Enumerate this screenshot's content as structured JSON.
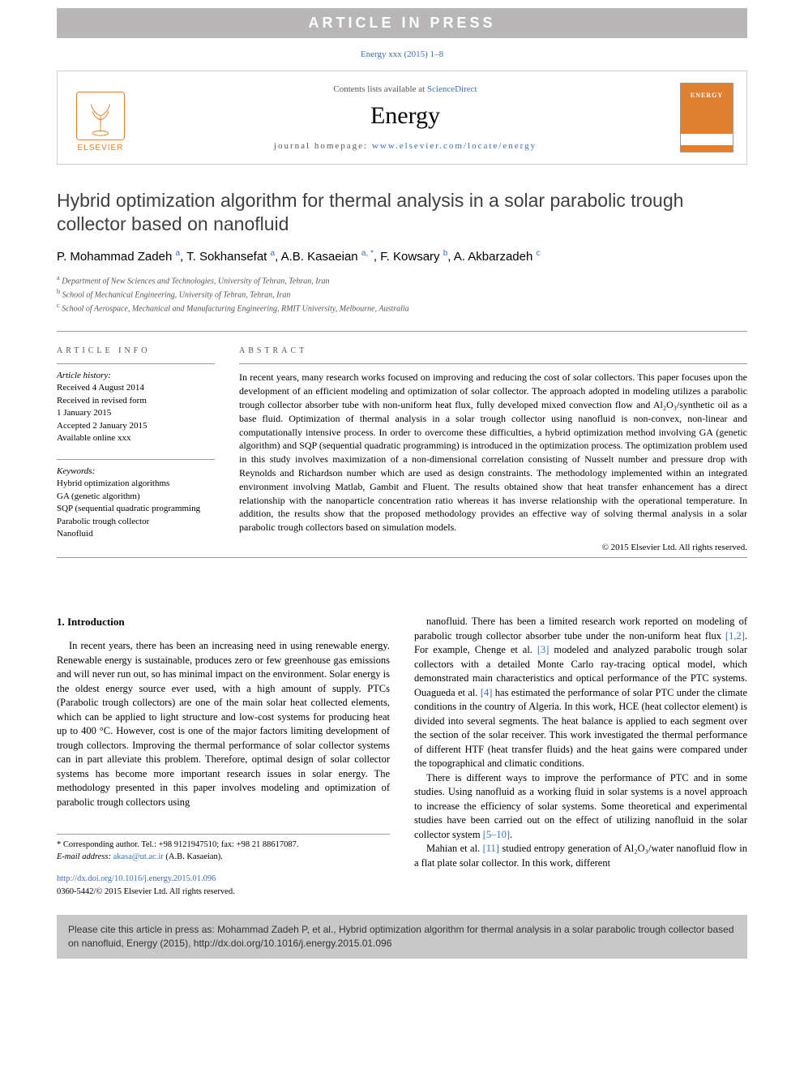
{
  "banner": "ARTICLE IN PRESS",
  "citation_top": "Energy xxx (2015) 1–8",
  "header": {
    "contents_prefix": "Contents lists available at ",
    "contents_link": "ScienceDirect",
    "journal": "Energy",
    "homepage_prefix": "journal homepage: ",
    "homepage_link": "www.elsevier.com/locate/energy",
    "publisher_name": "ELSEVIER",
    "cover_title": "ENERGY"
  },
  "title": "Hybrid optimization algorithm for thermal analysis in a solar parabolic trough collector based on nanofluid",
  "authors_html": "P. Mohammad Zadeh <sup>a</sup>, T. Sokhansefat <sup>a</sup>, A.B. Kasaeian <sup>a, *</sup>, F. Kowsary <sup>b</sup>, A. Akbarzadeh <sup>c</sup>",
  "affiliations": [
    {
      "sup": "a",
      "text": "Department of New Sciences and Technologies, University of Tehran, Tehran, Iran"
    },
    {
      "sup": "b",
      "text": "School of Mechanical Engineering, University of Tehran, Tehran, Iran"
    },
    {
      "sup": "c",
      "text": "School of Aerospace, Mechanical and Manufacturing Engineering, RMIT University, Melbourne, Australia"
    }
  ],
  "info_label": "ARTICLE INFO",
  "abstract_label": "ABSTRACT",
  "history": {
    "label": "Article history:",
    "lines": [
      "Received 4 August 2014",
      "Received in revised form",
      "1 January 2015",
      "Accepted 2 January 2015",
      "Available online xxx"
    ]
  },
  "keywords": {
    "label": "Keywords:",
    "items": [
      "Hybrid optimization algorithms",
      "GA (genetic algorithm)",
      "SQP (sequential quadratic programming",
      "Parabolic trough collector",
      "Nanofluid"
    ]
  },
  "abstract": "In recent years, many research works focused on improving and reducing the cost of solar collectors. This paper focuses upon the development of an efficient modeling and optimization of solar collector. The approach adopted in modeling utilizes a parabolic trough collector absorber tube with non-uniform heat flux, fully developed mixed convection flow and Al₂O₃/synthetic oil as a base fluid. Optimization of thermal analysis in a solar trough collector using nanofluid is non-convex, non-linear and computationally intensive process. In order to overcome these difficulties, a hybrid optimization method involving GA (genetic algorithm) and SQP (sequential quadratic programming) is introduced in the optimization process. The optimization problem used in this study involves maximization of a non-dimensional correlation consisting of Nusselt number and pressure drop with Reynolds and Richardson number which are used as design constraints. The methodology implemented within an integrated environment involving Matlab, Gambit and Fluent. The results obtained show that heat transfer enhancement has a direct relationship with the nanoparticle concentration ratio whereas it has inverse relationship with the operational temperature. In addition, the results show that the proposed methodology provides an effective way of solving thermal analysis in a solar parabolic trough collectors based on simulation models.",
  "copyright": "© 2015 Elsevier Ltd. All rights reserved.",
  "section1_heading": "1. Introduction",
  "col1_p1": "In recent years, there has been an increasing need in using renewable energy. Renewable energy is sustainable, produces zero or few greenhouse gas emissions and will never run out, so has minimal impact on the environment. Solar energy is the oldest energy source ever used, with a high amount of supply. PTCs (Parabolic trough collectors) are one of the main solar heat collected elements, which can be applied to light structure and low-cost systems for producing heat up to 400 °C. However, cost is one of the major factors limiting development of trough collectors. Improving the thermal performance of solar collector systems can in part alleviate this problem. Therefore, optimal design of solar collector systems has become more important research issues in solar energy. The methodology presented in this paper involves modeling and optimization of parabolic trough collectors using",
  "col2_p1": "nanofluid. There has been a limited research work reported on modeling of parabolic trough collector absorber tube under the non-uniform heat flux [1,2]. For example, Chenge et al. [3] modeled and analyzed parabolic trough solar collectors with a detailed Monte Carlo ray-tracing optical model, which demonstrated main characteristics and optical performance of the PTC systems. Ouagueda et al. [4] has estimated the performance of solar PTC under the climate conditions in the country of Algeria. In this work, HCE (heat collector element) is divided into several segments. The heat balance is applied to each segment over the section of the solar receiver. This work investigated the thermal performance of different HTF (heat transfer fluids) and the heat gains were compared under the topographical and climatic conditions.",
  "col2_p2": "There is different ways to improve the performance of PTC and in some studies. Using nanofluid as a working fluid in solar systems is a novel approach to increase the efficiency of solar systems. Some theoretical and experimental studies have been carried out on the effect of utilizing nanofluid in the solar collector system [5–10].",
  "col2_p3": "Mahian et al. [11] studied entropy generation of Al₂O₃/water nanofluid flow in a flat plate solar collector. In this work, different",
  "refs": {
    "r12": "[1,2]",
    "r3": "[3]",
    "r4": "[4]",
    "r510": "[5–10]",
    "r11": "[11]"
  },
  "corr": {
    "line1": "* Corresponding author. Tel.: +98 9121947510; fax: +98 21 88617087.",
    "email_label": "E-mail address: ",
    "email": "akasa@ut.ac.ir",
    "email_suffix": " (A.B. Kasaeian)."
  },
  "doi": "http://dx.doi.org/10.1016/j.energy.2015.01.096",
  "issn_copyright": "0360-5442/© 2015 Elsevier Ltd. All rights reserved.",
  "cite_box": "Please cite this article in press as: Mohammad Zadeh P, et al., Hybrid optimization algorithm for thermal analysis in a solar parabolic trough collector based on nanofluid, Energy (2015), http://dx.doi.org/10.1016/j.energy.2015.01.096",
  "colors": {
    "banner_bg": "#b8b6b6",
    "link": "#3b6fb6",
    "elsevier": "#e67e22",
    "cover_bg": "#e08030",
    "cite_bg": "#c8c8c8"
  }
}
